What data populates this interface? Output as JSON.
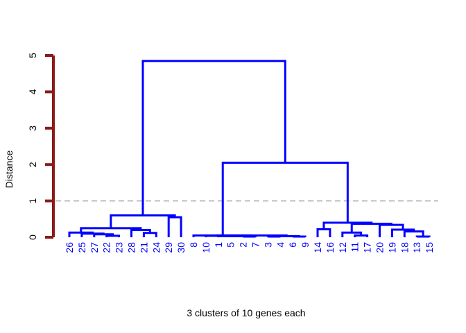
{
  "chart_data": {
    "type": "dendrogram",
    "xlabel": "3 clusters of 10 genes each",
    "ylabel": "Distance",
    "ylim": [
      0,
      5
    ],
    "yticks": [
      0,
      1,
      2,
      3,
      4,
      5
    ],
    "cut_height": 1,
    "leaf_order": [
      "26",
      "25",
      "27",
      "22",
      "23",
      "28",
      "21",
      "24",
      "29",
      "30",
      "8",
      "10",
      "1",
      "5",
      "2",
      "7",
      "3",
      "4",
      "6",
      "9",
      "14",
      "16",
      "12",
      "11",
      "17",
      "20",
      "19",
      "18",
      "13",
      "15"
    ],
    "merges": [
      {
        "left": "22",
        "right": "23",
        "height": 0.04
      },
      {
        "left": "27",
        "right": "m1",
        "height": 0.08
      },
      {
        "left": "25",
        "right": "m2",
        "height": 0.1
      },
      {
        "left": "26",
        "right": "m3",
        "height": 0.13
      },
      {
        "left": "21",
        "right": "24",
        "height": 0.12
      },
      {
        "left": "28",
        "right": "m5",
        "height": 0.2
      },
      {
        "left": "m4",
        "right": "m6",
        "height": 0.25
      },
      {
        "left": "29",
        "right": "30",
        "height": 0.55
      },
      {
        "left": "m7",
        "right": "m8",
        "height": 0.6
      },
      {
        "left": "2",
        "right": "7",
        "height": 0.02
      },
      {
        "left": "3",
        "right": "4",
        "height": 0.02
      },
      {
        "left": "6",
        "right": "9",
        "height": 0.02
      },
      {
        "left": "5",
        "right": "m10",
        "height": 0.03
      },
      {
        "left": "1",
        "right": "m13",
        "height": 0.03
      },
      {
        "left": "m11",
        "right": "m12",
        "height": 0.03
      },
      {
        "left": "10",
        "right": "m14",
        "height": 0.04
      },
      {
        "left": "m16",
        "right": "m15",
        "height": 0.05
      },
      {
        "left": "8",
        "right": "m17",
        "height": 0.05
      },
      {
        "left": "14",
        "right": "16",
        "height": 0.22
      },
      {
        "left": "13",
        "right": "15",
        "height": 0.02
      },
      {
        "left": "11",
        "right": "17",
        "height": 0.05
      },
      {
        "left": "12",
        "right": "m21",
        "height": 0.13
      },
      {
        "left": "18",
        "right": "m20",
        "height": 0.16
      },
      {
        "left": "19",
        "right": "m23",
        "height": 0.21
      },
      {
        "left": "20",
        "right": "m24",
        "height": 0.34
      },
      {
        "left": "m22",
        "right": "m25",
        "height": 0.37
      },
      {
        "left": "m19",
        "right": "m26",
        "height": 0.4
      },
      {
        "left": "m18",
        "right": "m27",
        "height": 2.05
      },
      {
        "left": "m9",
        "right": "m28",
        "height": 4.85
      }
    ],
    "colors": {
      "branches": "#0000ff",
      "leaf_labels": "#0000ff",
      "axis": "#8b1a1a",
      "cut_line": "#aaaaaa",
      "text": "#000000"
    }
  }
}
